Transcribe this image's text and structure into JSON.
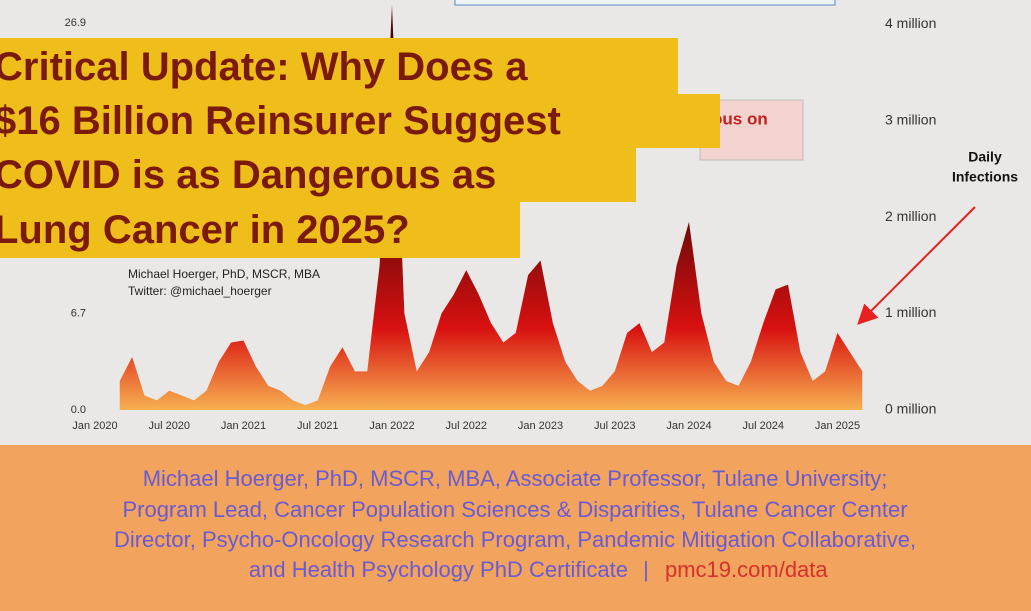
{
  "chart_data": {
    "type": "area",
    "x": [
      "2020-03",
      "2020-04",
      "2020-05",
      "2020-06",
      "2020-07",
      "2020-08",
      "2020-09",
      "2020-10",
      "2020-11",
      "2020-12",
      "2021-01",
      "2021-02",
      "2021-03",
      "2021-04",
      "2021-05",
      "2021-06",
      "2021-07",
      "2021-08",
      "2021-09",
      "2021-10",
      "2021-11",
      "2021-12",
      "2022-01",
      "2022-02",
      "2022-03",
      "2022-04",
      "2022-05",
      "2022-06",
      "2022-07",
      "2022-08",
      "2022-09",
      "2022-10",
      "2022-11",
      "2022-12",
      "2023-01",
      "2023-02",
      "2023-03",
      "2023-04",
      "2023-05",
      "2023-06",
      "2023-07",
      "2023-08",
      "2023-09",
      "2023-10",
      "2023-11",
      "2023-12",
      "2024-01",
      "2024-02",
      "2024-03",
      "2024-04",
      "2024-05",
      "2024-06",
      "2024-07",
      "2024-08",
      "2024-09",
      "2024-10",
      "2024-11",
      "2024-12",
      "2025-01",
      "2025-02",
      "2025-03"
    ],
    "values": [
      0.3,
      0.55,
      0.15,
      0.1,
      0.2,
      0.15,
      0.1,
      0.2,
      0.5,
      0.7,
      0.72,
      0.45,
      0.25,
      0.2,
      0.1,
      0.05,
      0.1,
      0.45,
      0.65,
      0.4,
      0.4,
      1.5,
      4.2,
      1.0,
      0.4,
      0.6,
      1.0,
      1.2,
      1.45,
      1.2,
      0.9,
      0.7,
      0.8,
      1.4,
      1.55,
      0.9,
      0.5,
      0.3,
      0.2,
      0.25,
      0.4,
      0.8,
      0.9,
      0.6,
      0.7,
      1.5,
      1.95,
      1.0,
      0.5,
      0.3,
      0.25,
      0.5,
      0.9,
      1.25,
      1.3,
      0.6,
      0.3,
      0.4,
      0.8,
      0.6,
      0.4
    ],
    "color": "#d81010",
    "ylim": [
      0,
      4.25
    ],
    "yticks": [
      {
        "value": 0,
        "label": "0 million"
      },
      {
        "value": 1,
        "label": "1 million"
      },
      {
        "value": 2,
        "label": "2 million"
      },
      {
        "value": 3,
        "label": "3 million"
      },
      {
        "value": 4,
        "label": "4 million"
      }
    ],
    "y2lim": [
      0,
      28.5
    ],
    "y2ticks": [
      {
        "value": 0,
        "label": "0.0"
      },
      6.7,
      26.9
    ],
    "xticks": [
      {
        "value": "2020-01",
        "label": "Jan 2020"
      },
      {
        "value": "2020-07",
        "label": "Jul 2020"
      },
      {
        "value": "2021-01",
        "label": "Jan 2021"
      },
      {
        "value": "2021-07",
        "label": "Jul 2021"
      },
      {
        "value": "2022-01",
        "label": "Jan 2022"
      },
      {
        "value": "2022-07",
        "label": "Jul 2022"
      },
      {
        "value": "2023-01",
        "label": "Jan 2023"
      },
      {
        "value": "2023-07",
        "label": "Jul 2023"
      },
      {
        "value": "2024-01",
        "label": "Jan 2024"
      },
      {
        "value": "2024-07",
        "label": "Jul 2024"
      },
      {
        "value": "2025-01",
        "label": "Jan 2025"
      }
    ],
    "y_label": [
      "Daily",
      "Infections"
    ],
    "credit": [
      "Michael Hoerger, PhD, MSCR, MBA",
      "Twitter: @michael_hoerger"
    ],
    "annotation": "ous on"
  },
  "overlay_title": [
    "Critical Update: Why Does a",
    "$16 Billion Reinsurer Suggest",
    "COVID is as Dangerous as",
    "Lung Cancer in 2025?"
  ],
  "footer": {
    "lines": [
      "Michael Hoerger, PhD, MSCR, MBA, Associate Professor, Tulane University;",
      "Program Lead, Cancer Population Sciences & Disparities, Tulane Cancer Center",
      "Director, Psycho-Oncology Research Program, Pandemic Mitigation Collaborative,",
      "and Health Psychology PhD Certificate"
    ],
    "separator": "|",
    "link": "pmc19.com/data"
  }
}
